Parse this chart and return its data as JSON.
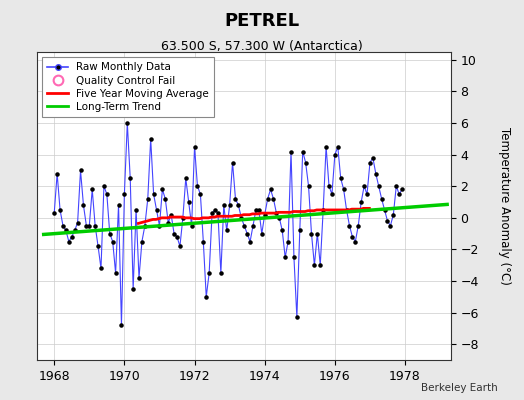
{
  "title": "PETREL",
  "subtitle": "63.500 S, 57.300 W (Antarctica)",
  "ylabel": "Temperature Anomaly (°C)",
  "credit": "Berkeley Earth",
  "xlim": [
    1967.5,
    1979.3
  ],
  "ylim": [
    -9.0,
    10.5
  ],
  "yticks": [
    -8,
    -6,
    -4,
    -2,
    0,
    2,
    4,
    6,
    8,
    10
  ],
  "xticks": [
    1968,
    1970,
    1972,
    1974,
    1976,
    1978
  ],
  "bg_color": "#e8e8e8",
  "plot_bg_color": "#ffffff",
  "raw_color": "#4444ff",
  "marker_color": "#000000",
  "moving_avg_color": "#ff0000",
  "trend_color": "#00cc00",
  "raw_data": [
    0.3,
    2.8,
    0.5,
    -0.5,
    -0.8,
    -1.5,
    -1.2,
    -0.8,
    -0.3,
    3.0,
    0.8,
    -0.5,
    -0.5,
    1.8,
    -0.5,
    -1.8,
    -3.2,
    2.0,
    1.5,
    -1.0,
    -1.5,
    -3.5,
    0.8,
    -6.8,
    1.5,
    6.0,
    2.5,
    -4.5,
    0.5,
    -3.8,
    -1.5,
    -0.5,
    1.2,
    5.0,
    1.5,
    0.5,
    -0.5,
    1.8,
    1.2,
    -0.3,
    0.2,
    -1.0,
    -1.2,
    -1.8,
    0.0,
    2.5,
    1.0,
    -0.5,
    4.5,
    2.0,
    1.5,
    -1.5,
    -5.0,
    -3.5,
    0.3,
    0.5,
    0.3,
    -3.5,
    0.8,
    -0.8,
    0.8,
    3.5,
    1.2,
    0.8,
    0.0,
    -0.5,
    -1.0,
    -1.5,
    -0.5,
    0.5,
    0.5,
    -1.0,
    0.2,
    1.2,
    1.8,
    1.2,
    0.3,
    0.0,
    -0.8,
    -2.5,
    -1.5,
    4.2,
    -2.5,
    -6.3,
    -0.8,
    4.2,
    3.5,
    2.0,
    -1.0,
    -3.0,
    -1.0,
    -3.0,
    0.5,
    4.5,
    2.0,
    1.5,
    4.0,
    4.5,
    2.5,
    1.8,
    0.5,
    -0.5,
    -1.2,
    -1.5,
    -0.5,
    1.0,
    2.0,
    1.5,
    3.5,
    3.8,
    2.8,
    2.0,
    1.2,
    0.5,
    -0.2,
    -0.5,
    0.2,
    2.0,
    1.5,
    1.8
  ],
  "trend_t": [
    1967.7,
    1979.2
  ],
  "trend_v": [
    -1.05,
    0.85
  ],
  "moving_avg_t_start": 1970.4,
  "moving_avg": [
    -0.35,
    -0.3,
    -0.25,
    -0.2,
    -0.15,
    -0.1,
    -0.1,
    -0.05,
    0.0,
    0.0,
    0.0,
    0.05,
    0.05,
    0.05,
    0.05,
    0.05,
    0.0,
    0.0,
    0.0,
    -0.05,
    -0.05,
    -0.05,
    0.0,
    0.0,
    0.0,
    0.05,
    0.05,
    0.1,
    0.1,
    0.1,
    0.1,
    0.1,
    0.1,
    0.15,
    0.15,
    0.15,
    0.2,
    0.2,
    0.2,
    0.25,
    0.25,
    0.25,
    0.3,
    0.3,
    0.3,
    0.3,
    0.3,
    0.3,
    0.35,
    0.35,
    0.35,
    0.35,
    0.35,
    0.4,
    0.4,
    0.4,
    0.4,
    0.4,
    0.45,
    0.45,
    0.45,
    0.5,
    0.5,
    0.5,
    0.5,
    0.5,
    0.5,
    0.5,
    0.5,
    0.5,
    0.5,
    0.5,
    0.5,
    0.55,
    0.55,
    0.55,
    0.55,
    0.6,
    0.6,
    0.6
  ]
}
